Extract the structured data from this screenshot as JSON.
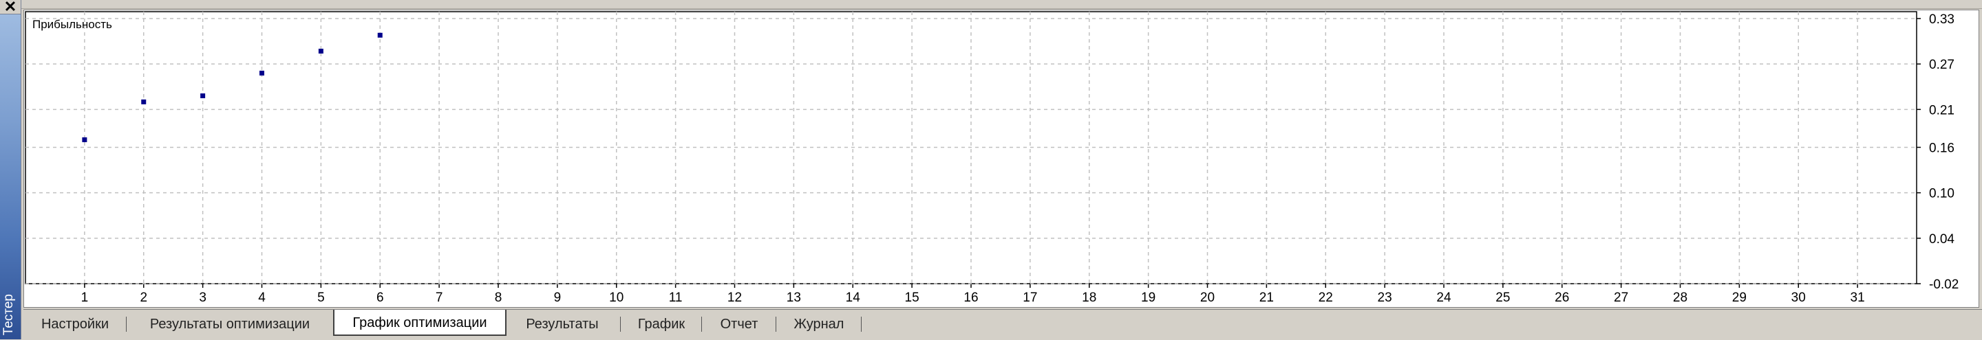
{
  "panel": {
    "title": "Тестер",
    "close_glyph": "✕"
  },
  "tabs": [
    {
      "label": "Настройки",
      "active": false
    },
    {
      "label": "Результаты оптимизации",
      "active": false
    },
    {
      "label": "График оптимизации",
      "active": true
    },
    {
      "label": "Результаты",
      "active": false
    },
    {
      "label": "График",
      "active": false
    },
    {
      "label": "Отчет",
      "active": false
    },
    {
      "label": "Журнал",
      "active": false
    }
  ],
  "chart_data": {
    "type": "scatter",
    "title": "Прибыльность",
    "xlabel": "",
    "ylabel": "",
    "x_ticks": [
      "1",
      "2",
      "3",
      "4",
      "5",
      "6",
      "7",
      "8",
      "9",
      "10",
      "11",
      "12",
      "13",
      "14",
      "15",
      "16",
      "17",
      "18",
      "19",
      "20",
      "21",
      "22",
      "23",
      "24",
      "25",
      "26",
      "27",
      "28",
      "29",
      "30",
      "31"
    ],
    "y_ticks": [
      "0.33",
      "0.27",
      "0.21",
      "0.16",
      "0.10",
      "0.04",
      "-0.02"
    ],
    "xlim": [
      0,
      32
    ],
    "ylim": [
      -0.02,
      0.33
    ],
    "grid": true,
    "point_color": "#00008b",
    "points": [
      {
        "x": 1,
        "y": 0.17
      },
      {
        "x": 2,
        "y": 0.22
      },
      {
        "x": 3,
        "y": 0.228
      },
      {
        "x": 4,
        "y": 0.258
      },
      {
        "x": 5,
        "y": 0.287
      },
      {
        "x": 6,
        "y": 0.308
      }
    ]
  }
}
